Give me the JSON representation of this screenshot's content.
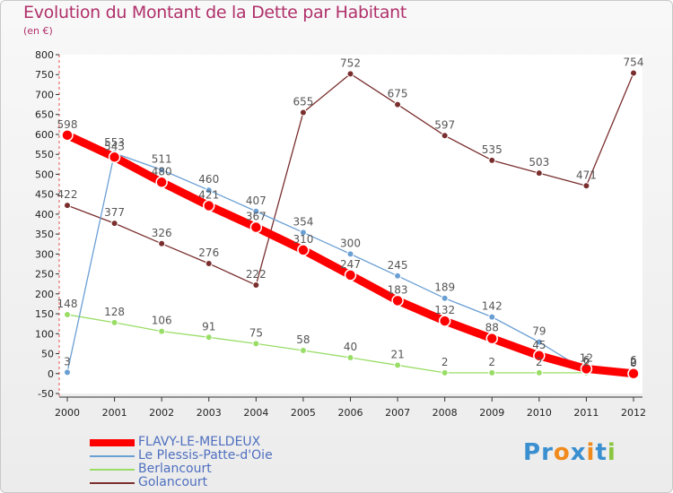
{
  "chart_data": {
    "type": "line",
    "title": "Evolution du Montant de la Dette par Habitant",
    "subtitle": "(en €)",
    "x": [
      "2000",
      "2001",
      "2002",
      "2003",
      "2004",
      "2005",
      "2006",
      "2007",
      "2008",
      "2009",
      "2010",
      "2011",
      "2012"
    ],
    "ylim": [
      -50,
      800
    ],
    "yticks": [
      -50,
      0,
      50,
      100,
      150,
      200,
      250,
      300,
      350,
      400,
      450,
      500,
      550,
      600,
      650,
      700,
      750,
      800
    ],
    "grid": false,
    "legend_position": "bottom-left",
    "series": [
      {
        "name": "FLAVY-LE-MELDEUX",
        "color": "#ff0000",
        "values": [
          598,
          543,
          480,
          421,
          367,
          310,
          247,
          183,
          132,
          88,
          45,
          12,
          0
        ],
        "labels": [
          "598",
          "543",
          "480",
          "421",
          "367",
          "310",
          "247",
          "183",
          "132",
          "88",
          "45",
          "12",
          "0"
        ]
      },
      {
        "name": "Le Plessis-Patte-d'Oie",
        "color": "#6a9fd4",
        "values": [
          3,
          553,
          511,
          460,
          407,
          354,
          300,
          245,
          189,
          142,
          79,
          6,
          6
        ],
        "labels": [
          "3",
          "553",
          "511",
          "460",
          "407",
          "354",
          "300",
          "245",
          "189",
          "142",
          "79",
          "6",
          "6"
        ]
      },
      {
        "name": "Berlancourt",
        "color": "#99dd66",
        "values": [
          148,
          128,
          106,
          91,
          75,
          58,
          40,
          21,
          2,
          2,
          2,
          2,
          2
        ],
        "labels": [
          "148",
          "128",
          "106",
          "91",
          "75",
          "58",
          "40",
          "21",
          "2",
          "2",
          "2",
          "2",
          "2"
        ]
      },
      {
        "name": "Golancourt",
        "color": "#7a2e2e",
        "values": [
          422,
          377,
          326,
          276,
          222,
          655,
          752,
          675,
          597,
          535,
          503,
          471,
          754
        ],
        "labels": [
          "422",
          "377",
          "326",
          "276",
          "222",
          "655",
          "752",
          "675",
          "597",
          "535",
          "503",
          "471",
          "754"
        ]
      }
    ]
  },
  "legend": {
    "items": [
      {
        "label": "FLAVY-LE-MELDEUX",
        "color": "#ff0000"
      },
      {
        "label": "Le Plessis-Patte-d'Oie",
        "color": "#6a9fd4"
      },
      {
        "label": "Berlancourt",
        "color": "#99dd66"
      },
      {
        "label": "Golancourt",
        "color": "#7a2e2e"
      }
    ]
  },
  "brand": {
    "letters": [
      {
        "ch": "P",
        "color": "#3a8fd0"
      },
      {
        "ch": "r",
        "color": "#3a8fd0"
      },
      {
        "ch": "o",
        "color": "#f08a1c"
      },
      {
        "ch": "x",
        "color": "#3a8fd0"
      },
      {
        "ch": "i",
        "color": "#f08a1c"
      },
      {
        "ch": "t",
        "color": "#3a8fd0"
      },
      {
        "ch": "i",
        "color": "#8bc53f"
      }
    ]
  }
}
